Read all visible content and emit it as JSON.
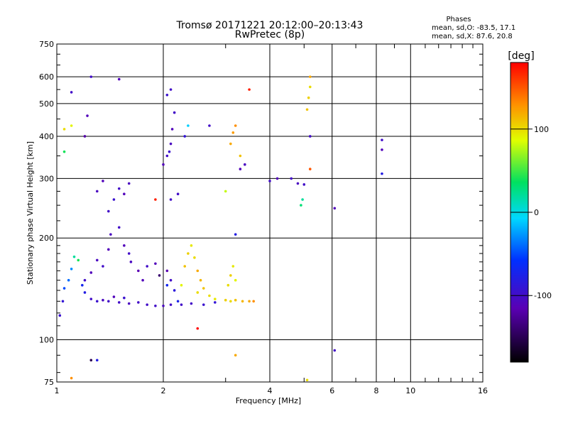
{
  "chart_data": {
    "type": "scatter",
    "title": "Tromsø 20171221 20:12:00–20:13:43",
    "subtitle": "RwPretec (8p)",
    "xlabel": "Frequency [MHz]",
    "ylabel": "Stationary phase Virtual Height [km]",
    "x_scale": "log",
    "y_scale": "log",
    "xlim": [
      1,
      16
    ],
    "ylim": [
      75,
      750
    ],
    "x_ticks": [
      1,
      2,
      4,
      6,
      8,
      10,
      16
    ],
    "y_ticks": [
      75,
      100,
      200,
      300,
      400,
      500,
      600,
      750
    ],
    "grid": true,
    "annotation": {
      "title": "Phases",
      "line1": "mean, sd,O: -83.5, 17.1",
      "line2": "mean, sd,X:  87.6, 20.8"
    },
    "colorbar": {
      "label": "[deg]",
      "range": [
        -180,
        180
      ],
      "ticks": [
        -100,
        0,
        100
      ],
      "tick_labels": [
        "-100",
        "0",
        "100"
      ]
    },
    "points": [
      {
        "x": 1.02,
        "y": 118,
        "phase": -95
      },
      {
        "x": 1.04,
        "y": 130,
        "phase": -90
      },
      {
        "x": 1.05,
        "y": 142,
        "phase": -50
      },
      {
        "x": 1.08,
        "y": 150,
        "phase": -40
      },
      {
        "x": 1.1,
        "y": 162,
        "phase": -30
      },
      {
        "x": 1.12,
        "y": 176,
        "phase": 20
      },
      {
        "x": 1.15,
        "y": 172,
        "phase": 40
      },
      {
        "x": 1.18,
        "y": 145,
        "phase": -70
      },
      {
        "x": 1.2,
        "y": 138,
        "phase": -80
      },
      {
        "x": 1.25,
        "y": 132,
        "phase": -100
      },
      {
        "x": 1.3,
        "y": 130,
        "phase": -95
      },
      {
        "x": 1.35,
        "y": 131,
        "phase": -105
      },
      {
        "x": 1.4,
        "y": 130,
        "phase": -100
      },
      {
        "x": 1.45,
        "y": 134,
        "phase": -110
      },
      {
        "x": 1.5,
        "y": 129,
        "phase": -100
      },
      {
        "x": 1.55,
        "y": 133,
        "phase": -95
      },
      {
        "x": 1.6,
        "y": 128,
        "phase": -105
      },
      {
        "x": 1.7,
        "y": 129,
        "phase": -100
      },
      {
        "x": 1.8,
        "y": 127,
        "phase": -100
      },
      {
        "x": 1.9,
        "y": 126,
        "phase": -100
      },
      {
        "x": 2.0,
        "y": 126,
        "phase": -105
      },
      {
        "x": 2.1,
        "y": 127,
        "phase": -100
      },
      {
        "x": 2.25,
        "y": 127,
        "phase": -100
      },
      {
        "x": 2.4,
        "y": 128,
        "phase": -100
      },
      {
        "x": 2.6,
        "y": 127,
        "phase": -95
      },
      {
        "x": 2.8,
        "y": 129,
        "phase": -90
      },
      {
        "x": 1.2,
        "y": 150,
        "phase": -100
      },
      {
        "x": 1.25,
        "y": 158,
        "phase": -110
      },
      {
        "x": 1.3,
        "y": 172,
        "phase": -105
      },
      {
        "x": 1.35,
        "y": 165,
        "phase": -100
      },
      {
        "x": 1.4,
        "y": 185,
        "phase": -110
      },
      {
        "x": 1.42,
        "y": 205,
        "phase": -105
      },
      {
        "x": 1.5,
        "y": 215,
        "phase": -100
      },
      {
        "x": 1.55,
        "y": 190,
        "phase": -110
      },
      {
        "x": 1.6,
        "y": 180,
        "phase": -100
      },
      {
        "x": 1.62,
        "y": 170,
        "phase": -105
      },
      {
        "x": 1.7,
        "y": 160,
        "phase": -115
      },
      {
        "x": 1.75,
        "y": 150,
        "phase": -110
      },
      {
        "x": 1.8,
        "y": 165,
        "phase": -100
      },
      {
        "x": 1.9,
        "y": 168,
        "phase": -110
      },
      {
        "x": 1.95,
        "y": 155,
        "phase": -140
      },
      {
        "x": 2.05,
        "y": 160,
        "phase": -115
      },
      {
        "x": 2.1,
        "y": 150,
        "phase": -100
      },
      {
        "x": 2.15,
        "y": 140,
        "phase": -85
      },
      {
        "x": 2.2,
        "y": 130,
        "phase": -75
      },
      {
        "x": 2.05,
        "y": 145,
        "phase": -70
      },
      {
        "x": 2.25,
        "y": 145,
        "phase": 90
      },
      {
        "x": 2.3,
        "y": 165,
        "phase": 110
      },
      {
        "x": 2.35,
        "y": 180,
        "phase": 105
      },
      {
        "x": 2.4,
        "y": 190,
        "phase": 95
      },
      {
        "x": 2.45,
        "y": 175,
        "phase": 100
      },
      {
        "x": 2.5,
        "y": 160,
        "phase": 120
      },
      {
        "x": 2.55,
        "y": 150,
        "phase": 115
      },
      {
        "x": 2.6,
        "y": 142,
        "phase": 110
      },
      {
        "x": 2.5,
        "y": 138,
        "phase": 100
      },
      {
        "x": 2.7,
        "y": 135,
        "phase": 100
      },
      {
        "x": 2.8,
        "y": 132,
        "phase": 95
      },
      {
        "x": 3.0,
        "y": 131,
        "phase": 105
      },
      {
        "x": 3.1,
        "y": 130,
        "phase": 100
      },
      {
        "x": 3.2,
        "y": 131,
        "phase": 110
      },
      {
        "x": 3.35,
        "y": 130,
        "phase": 115
      },
      {
        "x": 3.5,
        "y": 130,
        "phase": 120
      },
      {
        "x": 3.6,
        "y": 130,
        "phase": 130
      },
      {
        "x": 3.05,
        "y": 145,
        "phase": 100
      },
      {
        "x": 3.1,
        "y": 155,
        "phase": 105
      },
      {
        "x": 3.15,
        "y": 165,
        "phase": 95
      },
      {
        "x": 3.2,
        "y": 150,
        "phase": 90
      },
      {
        "x": 2.0,
        "y": 330,
        "phase": -110
      },
      {
        "x": 2.05,
        "y": 350,
        "phase": -100
      },
      {
        "x": 2.1,
        "y": 380,
        "phase": -105
      },
      {
        "x": 2.12,
        "y": 420,
        "phase": -110
      },
      {
        "x": 2.15,
        "y": 470,
        "phase": -100
      },
      {
        "x": 2.08,
        "y": 360,
        "phase": -95
      },
      {
        "x": 2.3,
        "y": 400,
        "phase": -90
      },
      {
        "x": 2.35,
        "y": 430,
        "phase": -10
      },
      {
        "x": 3.1,
        "y": 380,
        "phase": 120
      },
      {
        "x": 3.15,
        "y": 410,
        "phase": 125
      },
      {
        "x": 3.2,
        "y": 430,
        "phase": 130
      },
      {
        "x": 3.3,
        "y": 350,
        "phase": 110
      },
      {
        "x": 3.3,
        "y": 320,
        "phase": -110
      },
      {
        "x": 3.4,
        "y": 330,
        "phase": -105
      },
      {
        "x": 4.0,
        "y": 295,
        "phase": -100
      },
      {
        "x": 4.2,
        "y": 300,
        "phase": -110
      },
      {
        "x": 4.6,
        "y": 300,
        "phase": -100
      },
      {
        "x": 4.8,
        "y": 290,
        "phase": -105
      },
      {
        "x": 5.0,
        "y": 288,
        "phase": -100
      },
      {
        "x": 4.9,
        "y": 250,
        "phase": 30
      },
      {
        "x": 4.95,
        "y": 260,
        "phase": 20
      },
      {
        "x": 5.1,
        "y": 480,
        "phase": 110
      },
      {
        "x": 5.15,
        "y": 520,
        "phase": 105
      },
      {
        "x": 5.2,
        "y": 560,
        "phase": 100
      },
      {
        "x": 5.2,
        "y": 600,
        "phase": 120
      },
      {
        "x": 5.2,
        "y": 400,
        "phase": -100
      },
      {
        "x": 5.2,
        "y": 320,
        "phase": 150
      },
      {
        "x": 1.5,
        "y": 280,
        "phase": -100
      },
      {
        "x": 1.55,
        "y": 270,
        "phase": -110
      },
      {
        "x": 1.6,
        "y": 290,
        "phase": -105
      },
      {
        "x": 1.45,
        "y": 260,
        "phase": -95
      },
      {
        "x": 1.4,
        "y": 240,
        "phase": -100
      },
      {
        "x": 1.35,
        "y": 295,
        "phase": -110
      },
      {
        "x": 1.3,
        "y": 275,
        "phase": -105
      },
      {
        "x": 1.9,
        "y": 260,
        "phase": 170
      },
      {
        "x": 2.1,
        "y": 260,
        "phase": -100
      },
      {
        "x": 2.2,
        "y": 270,
        "phase": -100
      },
      {
        "x": 3.0,
        "y": 275,
        "phase": 80
      },
      {
        "x": 3.2,
        "y": 205,
        "phase": -80
      },
      {
        "x": 2.7,
        "y": 430,
        "phase": -100
      },
      {
        "x": 1.05,
        "y": 360,
        "phase": 40
      },
      {
        "x": 1.05,
        "y": 420,
        "phase": 100
      },
      {
        "x": 1.1,
        "y": 430,
        "phase": 90
      },
      {
        "x": 1.1,
        "y": 540,
        "phase": -100
      },
      {
        "x": 1.2,
        "y": 400,
        "phase": -120
      },
      {
        "x": 1.22,
        "y": 460,
        "phase": -110
      },
      {
        "x": 1.25,
        "y": 600,
        "phase": -100
      },
      {
        "x": 1.5,
        "y": 590,
        "phase": -110
      },
      {
        "x": 2.1,
        "y": 550,
        "phase": -100
      },
      {
        "x": 2.05,
        "y": 530,
        "phase": -95
      },
      {
        "x": 3.5,
        "y": 550,
        "phase": 170
      },
      {
        "x": 6.1,
        "y": 245,
        "phase": -110
      },
      {
        "x": 6.1,
        "y": 93,
        "phase": -100
      },
      {
        "x": 8.3,
        "y": 390,
        "phase": -100
      },
      {
        "x": 8.3,
        "y": 365,
        "phase": -110
      },
      {
        "x": 8.3,
        "y": 310,
        "phase": -80
      },
      {
        "x": 1.25,
        "y": 87,
        "phase": -150
      },
      {
        "x": 1.3,
        "y": 87,
        "phase": -80
      },
      {
        "x": 1.1,
        "y": 77,
        "phase": 130
      },
      {
        "x": 2.5,
        "y": 108,
        "phase": 180
      },
      {
        "x": 3.2,
        "y": 90,
        "phase": 120
      },
      {
        "x": 5.1,
        "y": 76,
        "phase": 100
      }
    ]
  }
}
